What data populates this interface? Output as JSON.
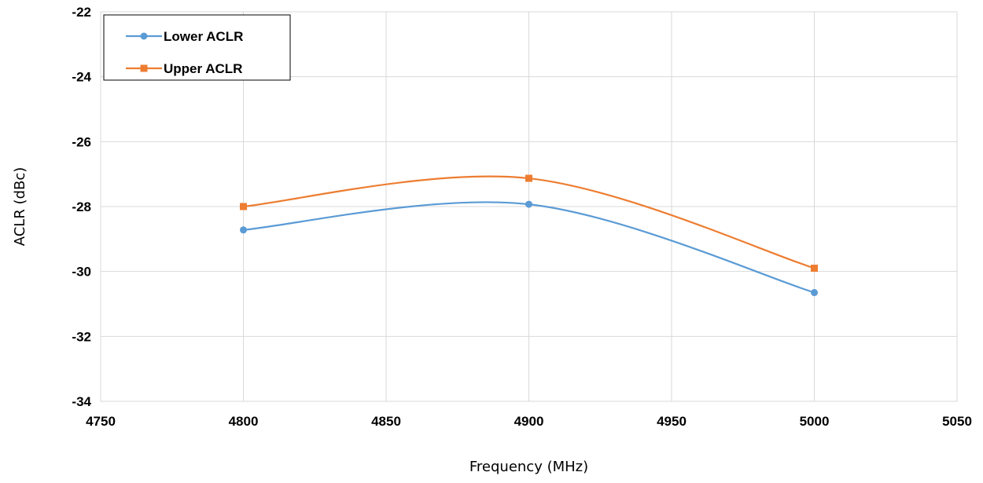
{
  "chart_data": {
    "type": "line",
    "xlabel": "Frequency (MHz)",
    "ylabel": "ACLR (dBc)",
    "xlim": [
      4750,
      5050
    ],
    "ylim": [
      -34,
      -22
    ],
    "x_ticks": [
      4750,
      4800,
      4850,
      4900,
      4950,
      5000,
      5050
    ],
    "y_ticks": [
      -34,
      -32,
      -30,
      -28,
      -26,
      -24,
      -22
    ],
    "grid": true,
    "smoothed": true,
    "legend_position": "top-left",
    "series": [
      {
        "name": "Lower ACLR",
        "color": "#5b9bd5",
        "marker": "circle",
        "x": [
          4800,
          4900,
          5000
        ],
        "y": [
          -28.72,
          -27.93,
          -30.65
        ]
      },
      {
        "name": "Upper ACLR",
        "color": "#ed7d31",
        "marker": "square",
        "x": [
          4800,
          4900,
          5000
        ],
        "y": [
          -28.0,
          -27.13,
          -29.9
        ]
      }
    ]
  }
}
